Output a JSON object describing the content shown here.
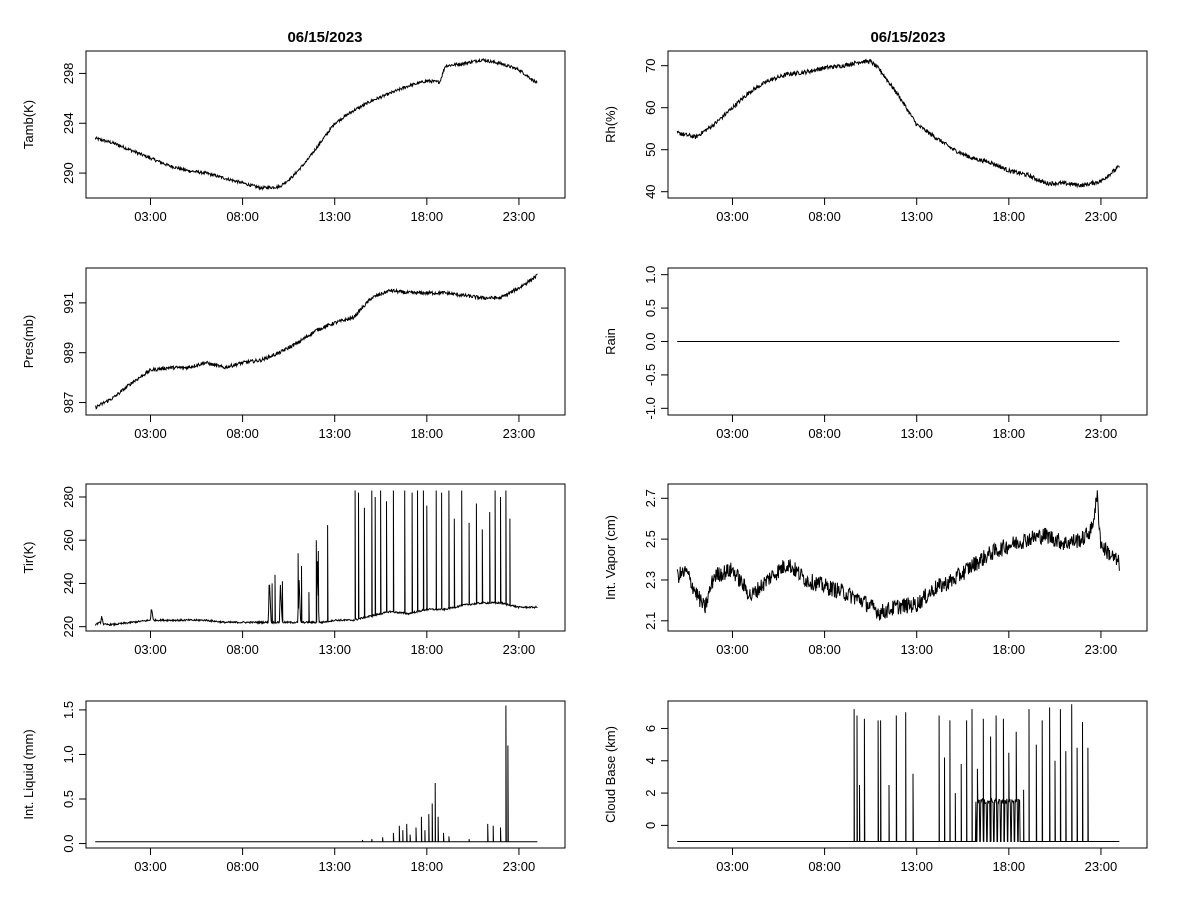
{
  "figure": {
    "left_title": "06/15/2023",
    "right_title": "06/15/2023"
  },
  "chart_data": [
    {
      "id": "tamb",
      "type": "line",
      "title": "06/15/2023",
      "xlabel": "",
      "ylabel": "Tamb(K)",
      "xticks": [
        "03:00",
        "08:00",
        "13:00",
        "18:00",
        "23:00"
      ],
      "xtick_hours": [
        3,
        8,
        13,
        18,
        23
      ],
      "xlim": [
        -0.5,
        25.5
      ],
      "yticks": [
        290,
        294,
        298
      ],
      "ylim": [
        288.0,
        299.8
      ],
      "line_color": "#000000",
      "noise": 0.12,
      "x": [
        0,
        1,
        2,
        3,
        4,
        5,
        6,
        7,
        8,
        9,
        10,
        10.7,
        11.5,
        12,
        13,
        14,
        15,
        16,
        17,
        18,
        18.7,
        19,
        20,
        21,
        22,
        23,
        24
      ],
      "y": [
        292.8,
        292.4,
        291.8,
        291.2,
        290.6,
        290.2,
        290.0,
        289.6,
        289.2,
        288.8,
        288.9,
        289.7,
        291.0,
        292.0,
        294.0,
        295.0,
        295.8,
        296.4,
        297.0,
        297.4,
        297.3,
        298.6,
        298.8,
        299.1,
        298.8,
        298.3,
        297.2
      ]
    },
    {
      "id": "rh",
      "type": "line",
      "title": "06/15/2023",
      "xlabel": "",
      "ylabel": "Rh(%)",
      "xticks": [
        "03:00",
        "08:00",
        "13:00",
        "18:00",
        "23:00"
      ],
      "xtick_hours": [
        3,
        8,
        13,
        18,
        23
      ],
      "xlim": [
        -0.5,
        25.5
      ],
      "yticks": [
        40,
        50,
        60,
        70
      ],
      "ylim": [
        38.5,
        73.5
      ],
      "line_color": "#000000",
      "noise": 0.5,
      "x": [
        0,
        1,
        2,
        3,
        4,
        5,
        6,
        7,
        8,
        9,
        10,
        10.5,
        11,
        12,
        13,
        14,
        15,
        16,
        17,
        18,
        19,
        20,
        21,
        22,
        23,
        24
      ],
      "y": [
        54,
        53,
        56,
        60,
        64,
        66.5,
        68,
        68.5,
        69.5,
        70,
        71,
        71,
        69,
        63,
        56,
        53,
        50,
        48,
        47,
        45,
        44,
        42,
        42,
        41.5,
        42.5,
        46
      ]
    },
    {
      "id": "pres",
      "type": "line",
      "title": "",
      "xlabel": "",
      "ylabel": "Pres(mb)",
      "xticks": [
        "03:00",
        "08:00",
        "13:00",
        "18:00",
        "23:00"
      ],
      "xtick_hours": [
        3,
        8,
        13,
        18,
        23
      ],
      "xlim": [
        -0.5,
        25.5
      ],
      "yticks": [
        987,
        989,
        991
      ],
      "ylim": [
        986.5,
        992.4
      ],
      "line_color": "#000000",
      "noise": 0.07,
      "x": [
        0,
        1,
        2,
        3,
        4,
        5,
        6,
        7,
        8,
        9,
        10,
        11,
        12,
        13,
        14,
        15,
        16,
        17,
        18,
        19,
        20,
        21,
        22,
        23,
        24
      ],
      "y": [
        986.8,
        987.2,
        987.8,
        988.3,
        988.4,
        988.4,
        988.6,
        988.4,
        988.6,
        988.7,
        989.0,
        989.4,
        989.9,
        990.2,
        990.4,
        991.2,
        991.5,
        991.4,
        991.4,
        991.4,
        991.3,
        991.2,
        991.2,
        991.6,
        992.1
      ]
    },
    {
      "id": "rain",
      "type": "line",
      "title": "",
      "xlabel": "",
      "ylabel": "Rain",
      "xticks": [
        "03:00",
        "08:00",
        "13:00",
        "18:00",
        "23:00"
      ],
      "xtick_hours": [
        3,
        8,
        13,
        18,
        23
      ],
      "xlim": [
        -0.5,
        25.5
      ],
      "yticks": [
        -1.0,
        -0.5,
        0.0,
        0.5,
        1.0
      ],
      "ytick_labels": [
        "-1.0",
        "-0.5",
        "0.0",
        "0.5",
        "1.0"
      ],
      "ylim": [
        -1.1,
        1.1
      ],
      "line_color": "#000000",
      "noise": 0,
      "x": [
        0,
        24
      ],
      "y": [
        0,
        0
      ]
    },
    {
      "id": "tir",
      "type": "line",
      "title": "",
      "xlabel": "",
      "ylabel": "Tir(K)",
      "xticks": [
        "03:00",
        "08:00",
        "13:00",
        "18:00",
        "23:00"
      ],
      "xtick_hours": [
        3,
        8,
        13,
        18,
        23
      ],
      "xlim": [
        -0.5,
        25.5
      ],
      "yticks": [
        220,
        240,
        260,
        280
      ],
      "ylim": [
        218,
        286
      ],
      "line_color": "#000000",
      "noise": 0.4,
      "x": [
        0,
        0.3,
        0.35,
        0.45,
        1,
        2,
        3,
        3.05,
        3.15,
        3.3,
        4,
        5,
        6,
        7,
        8,
        9,
        9.4,
        9.45,
        9.55,
        9.7,
        10,
        10.05,
        10.15,
        10.3,
        11,
        11.05,
        11.15,
        11.3,
        12,
        12.05,
        12.15,
        12.3,
        13,
        14,
        15,
        16,
        17,
        18,
        19,
        20,
        21,
        22,
        23,
        24
      ],
      "y": [
        221,
        222,
        225,
        221,
        221,
        222,
        223,
        229,
        223,
        223,
        223,
        223,
        223,
        222,
        222,
        222,
        222,
        243,
        222,
        222,
        222,
        240,
        222,
        222,
        222,
        245,
        222,
        222,
        222,
        251,
        222,
        222,
        223,
        223,
        225,
        227,
        226,
        228,
        228,
        230,
        231,
        231,
        229,
        229
      ],
      "spikes": [
        {
          "h": 9.6,
          "v": 240
        },
        {
          "h": 9.75,
          "v": 244
        },
        {
          "h": 10.15,
          "v": 241
        },
        {
          "h": 11.0,
          "v": 254
        },
        {
          "h": 11.2,
          "v": 248
        },
        {
          "h": 11.6,
          "v": 236
        },
        {
          "h": 12.0,
          "v": 260
        },
        {
          "h": 12.1,
          "v": 255
        },
        {
          "h": 12.6,
          "v": 267
        },
        {
          "h": 14.1,
          "v": 283
        },
        {
          "h": 14.3,
          "v": 282
        },
        {
          "h": 14.6,
          "v": 275
        },
        {
          "h": 15.0,
          "v": 283
        },
        {
          "h": 15.2,
          "v": 280
        },
        {
          "h": 15.5,
          "v": 283
        },
        {
          "h": 15.8,
          "v": 278
        },
        {
          "h": 16.2,
          "v": 283
        },
        {
          "h": 16.8,
          "v": 283
        },
        {
          "h": 17.2,
          "v": 282
        },
        {
          "h": 17.5,
          "v": 283
        },
        {
          "h": 17.8,
          "v": 283
        },
        {
          "h": 18.0,
          "v": 276
        },
        {
          "h": 18.5,
          "v": 283
        },
        {
          "h": 18.8,
          "v": 282
        },
        {
          "h": 19.2,
          "v": 283
        },
        {
          "h": 19.5,
          "v": 270
        },
        {
          "h": 19.9,
          "v": 283
        },
        {
          "h": 20.3,
          "v": 268
        },
        {
          "h": 20.7,
          "v": 277
        },
        {
          "h": 21.0,
          "v": 265
        },
        {
          "h": 21.4,
          "v": 273
        },
        {
          "h": 21.7,
          "v": 283
        },
        {
          "h": 22.0,
          "v": 280
        },
        {
          "h": 22.3,
          "v": 283
        },
        {
          "h": 22.5,
          "v": 270
        }
      ]
    },
    {
      "id": "vapor",
      "type": "line",
      "title": "",
      "xlabel": "",
      "ylabel": "Int. Vapor (cm)",
      "xticks": [
        "03:00",
        "08:00",
        "13:00",
        "18:00",
        "23:00"
      ],
      "xtick_hours": [
        3,
        8,
        13,
        18,
        23
      ],
      "xlim": [
        -0.5,
        25.5
      ],
      "yticks": [
        2.1,
        2.3,
        2.5,
        2.7
      ],
      "ylim": [
        2.05,
        2.77
      ],
      "line_color": "#000000",
      "noise": 0.04,
      "x": [
        0,
        0.5,
        1,
        1.5,
        2,
        3,
        4,
        5,
        6,
        7,
        8,
        9,
        10,
        11,
        12,
        13,
        14,
        15,
        16,
        17,
        18,
        19,
        20,
        21,
        22,
        22.5,
        22.8,
        23,
        24
      ],
      "y": [
        2.32,
        2.34,
        2.24,
        2.16,
        2.32,
        2.35,
        2.22,
        2.31,
        2.38,
        2.3,
        2.27,
        2.24,
        2.2,
        2.14,
        2.17,
        2.18,
        2.26,
        2.3,
        2.37,
        2.43,
        2.47,
        2.5,
        2.52,
        2.48,
        2.5,
        2.55,
        2.71,
        2.47,
        2.38
      ]
    },
    {
      "id": "liquid",
      "type": "line",
      "title": "",
      "xlabel": "",
      "ylabel": "Int. Liquid (mm)",
      "xticks": [
        "03:00",
        "08:00",
        "13:00",
        "18:00",
        "23:00"
      ],
      "xtick_hours": [
        3,
        8,
        13,
        18,
        23
      ],
      "xlim": [
        -0.5,
        25.5
      ],
      "yticks": [
        0.0,
        0.5,
        1.0,
        1.5
      ],
      "ytick_labels": [
        "0.0",
        "0.5",
        "1.0",
        "1.5"
      ],
      "ylim": [
        -0.05,
        1.6
      ],
      "line_color": "#000000",
      "noise": 0,
      "x": [
        0,
        24
      ],
      "y": [
        0.02,
        0.02
      ],
      "spikes": [
        {
          "h": 14.5,
          "v": 0.04
        },
        {
          "h": 15.0,
          "v": 0.05
        },
        {
          "h": 15.6,
          "v": 0.07
        },
        {
          "h": 16.2,
          "v": 0.12
        },
        {
          "h": 16.5,
          "v": 0.2
        },
        {
          "h": 16.7,
          "v": 0.15
        },
        {
          "h": 16.9,
          "v": 0.22
        },
        {
          "h": 17.1,
          "v": 0.1
        },
        {
          "h": 17.4,
          "v": 0.18
        },
        {
          "h": 17.7,
          "v": 0.3
        },
        {
          "h": 17.9,
          "v": 0.15
        },
        {
          "h": 18.1,
          "v": 0.33
        },
        {
          "h": 18.3,
          "v": 0.45
        },
        {
          "h": 18.45,
          "v": 0.68
        },
        {
          "h": 18.6,
          "v": 0.3
        },
        {
          "h": 18.9,
          "v": 0.12
        },
        {
          "h": 19.2,
          "v": 0.08
        },
        {
          "h": 20.3,
          "v": 0.05
        },
        {
          "h": 21.3,
          "v": 0.22
        },
        {
          "h": 21.6,
          "v": 0.2
        },
        {
          "h": 22.0,
          "v": 0.18
        },
        {
          "h": 22.3,
          "v": 1.55
        },
        {
          "h": 22.4,
          "v": 1.1
        }
      ]
    },
    {
      "id": "cloudbase",
      "type": "line",
      "title": "",
      "xlabel": "",
      "ylabel": "Cloud Base (km)",
      "xticks": [
        "03:00",
        "08:00",
        "13:00",
        "18:00",
        "23:00"
      ],
      "xtick_hours": [
        3,
        8,
        13,
        18,
        23
      ],
      "xlim": [
        -0.5,
        25.5
      ],
      "yticks": [
        0,
        2,
        4,
        6
      ],
      "ylim": [
        -1.4,
        7.7
      ],
      "line_color": "#000000",
      "noise": 0,
      "x": [
        0,
        24
      ],
      "y": [
        -1.0,
        -1.0
      ],
      "spikes": [
        {
          "h": 9.6,
          "v": 7.2
        },
        {
          "h": 9.75,
          "v": 6.8
        },
        {
          "h": 9.9,
          "v": 2.5
        },
        {
          "h": 10.15,
          "v": 6.6
        },
        {
          "h": 10.9,
          "v": 6.5
        },
        {
          "h": 11.05,
          "v": 6.5
        },
        {
          "h": 11.5,
          "v": 2.5
        },
        {
          "h": 11.9,
          "v": 6.8
        },
        {
          "h": 12.4,
          "v": 7.0
        },
        {
          "h": 12.8,
          "v": 3.2
        },
        {
          "h": 14.2,
          "v": 6.8
        },
        {
          "h": 14.5,
          "v": 4.2
        },
        {
          "h": 14.8,
          "v": 6.5
        },
        {
          "h": 15.1,
          "v": 2.0
        },
        {
          "h": 15.4,
          "v": 3.8
        },
        {
          "h": 15.7,
          "v": 6.5
        },
        {
          "h": 16.0,
          "v": 7.2
        },
        {
          "h": 16.3,
          "v": 3.5
        },
        {
          "h": 16.6,
          "v": 6.6
        },
        {
          "h": 17.0,
          "v": 5.5
        },
        {
          "h": 17.3,
          "v": 6.8
        },
        {
          "h": 17.7,
          "v": 6.6
        },
        {
          "h": 18.0,
          "v": 4.5
        },
        {
          "h": 18.4,
          "v": 5.8
        },
        {
          "h": 18.8,
          "v": 2.2
        },
        {
          "h": 19.1,
          "v": 7.2
        },
        {
          "h": 19.5,
          "v": 5.0
        },
        {
          "h": 19.8,
          "v": 6.5
        },
        {
          "h": 20.2,
          "v": 7.3
        },
        {
          "h": 20.5,
          "v": 4.0
        },
        {
          "h": 20.8,
          "v": 7.2
        },
        {
          "h": 21.1,
          "v": 4.6
        },
        {
          "h": 21.4,
          "v": 7.5
        },
        {
          "h": 21.7,
          "v": 4.8
        },
        {
          "h": 22.0,
          "v": 6.4
        },
        {
          "h": 22.3,
          "v": 4.8
        }
      ],
      "plateau": {
        "from": 16.2,
        "to": 18.6,
        "v": 1.5
      }
    }
  ]
}
